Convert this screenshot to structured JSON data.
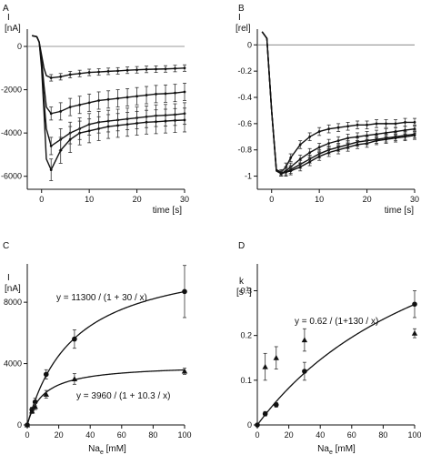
{
  "chart_data": [
    {
      "panel": "A",
      "type": "line",
      "ylabel": "I",
      "yunit": "[nA]",
      "xlabel": "time [s]",
      "xlim": [
        -3,
        30
      ],
      "ylim": [
        -6600,
        800
      ],
      "xticks": [
        0,
        10,
        20,
        30
      ],
      "yticks": [
        0,
        -2000,
        -4000,
        -6000
      ],
      "zero_line": true,
      "series": [
        {
          "x": [
            -2,
            -1,
            -0.5,
            0,
            0.5,
            1,
            2,
            4,
            6,
            8,
            10,
            12,
            14,
            16,
            18,
            20,
            22,
            24,
            26,
            28,
            30
          ],
          "y": [
            500,
            450,
            200,
            -400,
            -1000,
            -1350,
            -1450,
            -1400,
            -1300,
            -1250,
            -1200,
            -1180,
            -1150,
            -1130,
            -1100,
            -1080,
            -1060,
            -1050,
            -1040,
            -1020,
            -1000
          ],
          "err": [
            0,
            0,
            0,
            0,
            0,
            0,
            150,
            150,
            150,
            150,
            150,
            150,
            150,
            150,
            150,
            150,
            150,
            150,
            150,
            150,
            150
          ]
        },
        {
          "x": [
            -2,
            -1,
            -0.5,
            0,
            0.5,
            1,
            2,
            4,
            6,
            8,
            10,
            12,
            14,
            16,
            18,
            20,
            22,
            24,
            26,
            28,
            30
          ],
          "y": [
            500,
            450,
            200,
            -600,
            -1800,
            -2800,
            -3100,
            -3000,
            -2800,
            -2700,
            -2600,
            -2500,
            -2450,
            -2400,
            -2350,
            -2300,
            -2250,
            -2200,
            -2180,
            -2150,
            -2100
          ],
          "err": [
            0,
            0,
            0,
            0,
            0,
            0,
            300,
            400,
            400,
            400,
            400,
            400,
            400,
            400,
            400,
            400,
            400,
            400,
            400,
            400,
            400
          ]
        },
        {
          "x": [
            -2,
            -1,
            -0.5,
            0,
            0.5,
            1,
            2,
            4,
            6,
            8,
            10,
            12,
            14,
            16,
            18,
            20,
            22,
            24,
            26,
            28,
            30
          ],
          "y": [
            500,
            450,
            200,
            -800,
            -2500,
            -3800,
            -4600,
            -4300,
            -4000,
            -3800,
            -3600,
            -3500,
            -3450,
            -3400,
            -3350,
            -3300,
            -3250,
            -3200,
            -3180,
            -3150,
            -3100
          ],
          "err": [
            0,
            0,
            0,
            0,
            0,
            0,
            400,
            500,
            500,
            500,
            500,
            500,
            500,
            500,
            500,
            500,
            500,
            500,
            500,
            500,
            500
          ]
        },
        {
          "x": [
            -2,
            -1,
            -0.5,
            0,
            0.5,
            1,
            2,
            4,
            6,
            8,
            10,
            12,
            14,
            16,
            18,
            20,
            22,
            24,
            26,
            28,
            30
          ],
          "y": [
            500,
            450,
            200,
            -1000,
            -3000,
            -5200,
            -5700,
            -4800,
            -4300,
            -4000,
            -3900,
            -3800,
            -3700,
            -3650,
            -3600,
            -3550,
            -3500,
            -3480,
            -3450,
            -3420,
            -3400
          ],
          "err": [
            0,
            0,
            0,
            0,
            0,
            0,
            500,
            600,
            600,
            550,
            550,
            550,
            550,
            550,
            550,
            550,
            550,
            550,
            550,
            550,
            550
          ]
        }
      ]
    },
    {
      "panel": "B",
      "type": "line",
      "ylabel": "I",
      "yunit": "[rel]",
      "xlabel": "time [s]",
      "xlim": [
        -3,
        30
      ],
      "ylim": [
        -1.1,
        0.12
      ],
      "xticks": [
        0,
        10,
        20,
        30
      ],
      "yticks": [
        0,
        -0.2,
        -0.4,
        -0.6,
        -0.8,
        -1
      ],
      "ytick_labels": [
        "0",
        "-0.2",
        "-0.4",
        "-0.6",
        "-0.8",
        "-1"
      ],
      "zero_line": true,
      "series": [
        {
          "x": [
            -2,
            -1,
            0,
            1,
            2,
            3,
            4,
            6,
            8,
            10,
            12,
            14,
            16,
            18,
            20,
            22,
            24,
            26,
            28,
            30
          ],
          "y": [
            0.1,
            0.05,
            -0.5,
            -0.95,
            -0.97,
            -0.93,
            -0.86,
            -0.76,
            -0.7,
            -0.66,
            -0.64,
            -0.63,
            -0.62,
            -0.61,
            -0.61,
            -0.6,
            -0.6,
            -0.6,
            -0.59,
            -0.59
          ],
          "err": [
            0,
            0,
            0,
            0,
            0.02,
            0.03,
            0.03,
            0.03,
            0.03,
            0.03,
            0.03,
            0.03,
            0.03,
            0.03,
            0.03,
            0.03,
            0.03,
            0.03,
            0.03,
            0.03
          ]
        },
        {
          "x": [
            -2,
            -1,
            0,
            1,
            2,
            3,
            4,
            6,
            8,
            10,
            12,
            14,
            16,
            18,
            20,
            22,
            24,
            26,
            28,
            30
          ],
          "y": [
            0.1,
            0.05,
            -0.5,
            -0.96,
            -0.98,
            -0.96,
            -0.93,
            -0.87,
            -0.82,
            -0.78,
            -0.75,
            -0.73,
            -0.71,
            -0.7,
            -0.69,
            -0.68,
            -0.67,
            -0.66,
            -0.65,
            -0.64
          ],
          "err": [
            0,
            0,
            0,
            0,
            0.02,
            0.03,
            0.03,
            0.03,
            0.03,
            0.03,
            0.03,
            0.03,
            0.03,
            0.03,
            0.03,
            0.03,
            0.03,
            0.03,
            0.03,
            0.03
          ]
        },
        {
          "x": [
            -2,
            -1,
            0,
            1,
            2,
            3,
            4,
            6,
            8,
            10,
            12,
            14,
            16,
            18,
            20,
            22,
            24,
            26,
            28,
            30
          ],
          "y": [
            0.1,
            0.05,
            -0.5,
            -0.96,
            -0.98,
            -0.97,
            -0.95,
            -0.91,
            -0.87,
            -0.83,
            -0.8,
            -0.78,
            -0.76,
            -0.74,
            -0.73,
            -0.72,
            -0.71,
            -0.7,
            -0.69,
            -0.68
          ],
          "err": [
            0,
            0,
            0,
            0,
            0.02,
            0.03,
            0.03,
            0.03,
            0.03,
            0.03,
            0.03,
            0.03,
            0.03,
            0.03,
            0.03,
            0.03,
            0.03,
            0.03,
            0.03,
            0.03
          ]
        },
        {
          "x": [
            -2,
            -1,
            0,
            1,
            2,
            3,
            4,
            6,
            8,
            10,
            12,
            14,
            16,
            18,
            20,
            22,
            24,
            26,
            28,
            30
          ],
          "y": [
            0.1,
            0.05,
            -0.5,
            -0.96,
            -0.98,
            -0.97,
            -0.96,
            -0.93,
            -0.89,
            -0.85,
            -0.82,
            -0.8,
            -0.78,
            -0.76,
            -0.75,
            -0.73,
            -0.72,
            -0.71,
            -0.7,
            -0.69
          ],
          "err": [
            0,
            0,
            0,
            0,
            0.02,
            0.03,
            0.03,
            0.03,
            0.03,
            0.03,
            0.03,
            0.03,
            0.03,
            0.03,
            0.03,
            0.03,
            0.03,
            0.03,
            0.03,
            0.03
          ]
        }
      ]
    },
    {
      "panel": "C",
      "type": "scatter",
      "ylabel": "I",
      "yunit": "[nA]",
      "xlabel": "Na",
      "xlabel_sub": "e",
      "xlabel_unit": " [mM]",
      "xlim": [
        0,
        100
      ],
      "ylim": [
        0,
        10500
      ],
      "xticks": [
        0,
        20,
        40,
        60,
        80,
        100
      ],
      "yticks": [
        0,
        4000,
        8000
      ],
      "fits": [
        {
          "formula": "y = 11300 / (1 + 30 / x)",
          "a": 11300,
          "b": 30
        },
        {
          "formula": "y = 3960 / (1 + 10.3 / x)",
          "a": 3960,
          "b": 10.3
        }
      ],
      "series": [
        {
          "marker": "circle",
          "x": [
            0,
            3,
            5,
            12,
            30,
            100
          ],
          "y": [
            0,
            1000,
            1500,
            3300,
            5600,
            8700
          ],
          "err": [
            0,
            150,
            250,
            300,
            600,
            1700
          ]
        },
        {
          "marker": "triangle",
          "x": [
            0,
            3,
            5,
            12,
            30,
            100
          ],
          "y": [
            0,
            900,
            1200,
            2000,
            3000,
            3500
          ],
          "err": [
            0,
            150,
            200,
            250,
            350,
            200
          ]
        }
      ]
    },
    {
      "panel": "D",
      "type": "scatter",
      "ylabel": "k",
      "yunit": "[s",
      "yunit_sup": "-1",
      "yunit_end": "]",
      "xlabel": "Na",
      "xlabel_sub": "e",
      "xlabel_unit": " [mM]",
      "xlim": [
        0,
        100
      ],
      "ylim": [
        0,
        0.36
      ],
      "xticks": [
        0,
        20,
        40,
        60,
        80,
        100
      ],
      "yticks": [
        0,
        0.1,
        0.2,
        0.3
      ],
      "fits": [
        {
          "formula": "y = 0.62 / (1+130 / x)",
          "a": 0.62,
          "b": 130
        }
      ],
      "series": [
        {
          "marker": "circle",
          "x": [
            0,
            5,
            12,
            30,
            100
          ],
          "y": [
            0,
            0.025,
            0.045,
            0.12,
            0.27
          ],
          "err": [
            0,
            0.005,
            0.005,
            0.02,
            0.03
          ]
        },
        {
          "marker": "triangle",
          "x": [
            5,
            12,
            30,
            100
          ],
          "y": [
            0.13,
            0.15,
            0.19,
            0.205
          ],
          "err": [
            0.03,
            0.025,
            0.025,
            0.01
          ]
        }
      ]
    }
  ]
}
